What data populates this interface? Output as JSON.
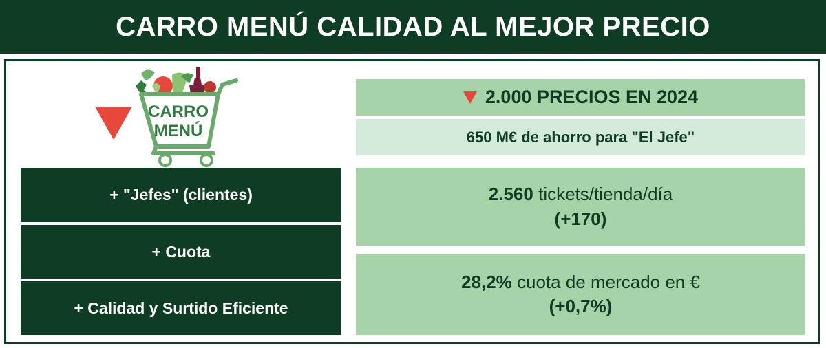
{
  "header": {
    "title": "CARRO MENÚ CALIDAD AL MEJOR PRECIO"
  },
  "logo": {
    "line1": "CARRO",
    "line2": "MENÚ"
  },
  "left_items": [
    {
      "label": "+ \"Jefes\" (clientes)"
    },
    {
      "label": "+ Cuota"
    },
    {
      "label": "+ Calidad y Surtido Eficiente"
    }
  ],
  "prices": {
    "text": "2.000 PRECIOS EN 2024"
  },
  "savings": {
    "text": "650 M€ de ahorro para \"El Jefe\""
  },
  "tickets": {
    "value": "2.560",
    "unit": "tickets/tienda/día",
    "delta": "(+170)"
  },
  "share": {
    "value": "28,2%",
    "unit": "cuota de mercado en €",
    "delta": "(+0,7%)"
  },
  "colors": {
    "dark_green": "#0f3d24",
    "mid_green": "#a6d3a8",
    "light_green": "#d4eadb",
    "red": "#e8473b"
  }
}
